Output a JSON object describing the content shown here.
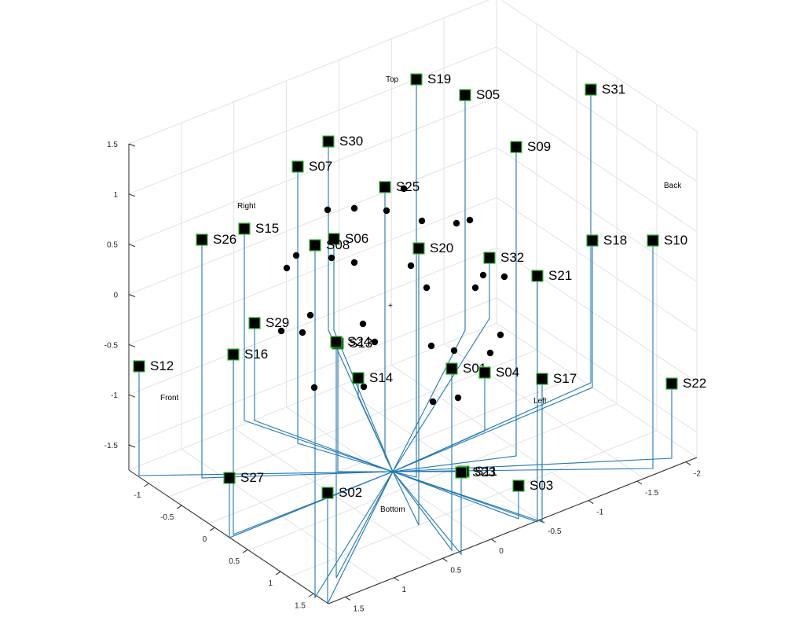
{
  "chart_data": {
    "type": "scatter",
    "title": "",
    "z_ticks": [
      "1.5",
      "1",
      "0.5",
      "0",
      "-0.5",
      "-1",
      "-1.5"
    ],
    "x_ticks": [
      "-1",
      "-0.5",
      "0",
      "0.5",
      "1",
      "1.5"
    ],
    "y_ticks": [
      "-2",
      "-1.5",
      "-1",
      "-0.5",
      "0",
      "0.5",
      "1",
      "1.5"
    ],
    "direction_labels": [
      {
        "id": "top",
        "text": "Top"
      },
      {
        "id": "back",
        "text": "Back"
      },
      {
        "id": "right",
        "text": "Right"
      },
      {
        "id": "front",
        "text": "Front"
      },
      {
        "id": "left",
        "text": "Left"
      },
      {
        "id": "bottom",
        "text": "Bottom"
      }
    ],
    "center_marker": "+",
    "sources": [
      "S01",
      "S02",
      "S03",
      "S04",
      "S05",
      "S06",
      "S07",
      "S08",
      "S09",
      "S10",
      "S11",
      "S12",
      "S13",
      "S14",
      "S15",
      "S16",
      "S17",
      "S18",
      "S19",
      "S20",
      "S21",
      "S22",
      "S23",
      "S24",
      "S25",
      "S26",
      "S27",
      "S29",
      "S30",
      "S31",
      "S32"
    ],
    "receiver_count": 32,
    "colors": {
      "stem": "#1f77b4",
      "marker_edge": "#2fc02f",
      "marker_face": "#000000",
      "grid": "#e2e2e2"
    },
    "grid": true
  }
}
